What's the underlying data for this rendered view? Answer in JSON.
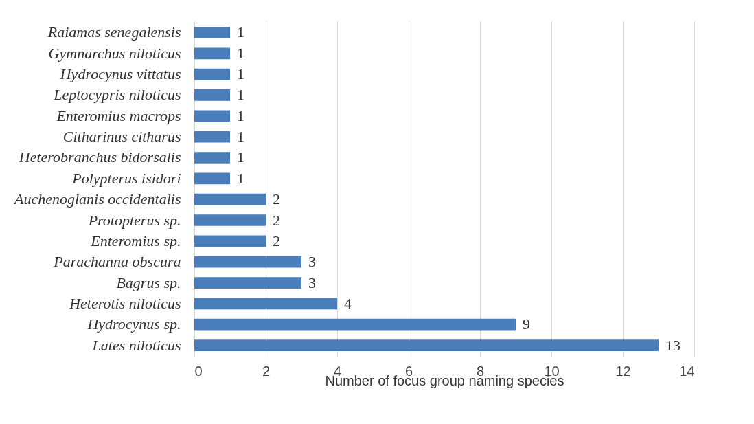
{
  "chart_data": {
    "type": "bar",
    "orientation": "horizontal",
    "categories": [
      "Raiamas senegalensis",
      "Gymnarchus niloticus",
      "Hydrocynus vittatus",
      "Leptocypris niloticus",
      "Enteromius macrops",
      "Citharinus citharus",
      "Heterobranchus bidorsalis",
      "Polypterus isidori",
      "Auchenoglanis occidentalis",
      "Protopterus sp.",
      "Enteromius sp.",
      "Parachanna obscura",
      "Bagrus sp.",
      "Heterotis niloticus",
      "Hydrocynus sp.",
      "Lates niloticus"
    ],
    "values": [
      1,
      1,
      1,
      1,
      1,
      1,
      1,
      1,
      2,
      2,
      2,
      3,
      3,
      4,
      9,
      13
    ],
    "color": "#4a7ebb",
    "xlabel": "Number of focus group naming species",
    "xlim": [
      0,
      14
    ],
    "xticks": [
      0,
      2,
      4,
      6,
      8,
      10,
      12,
      14
    ],
    "grid": "x",
    "data_labels": true
  }
}
